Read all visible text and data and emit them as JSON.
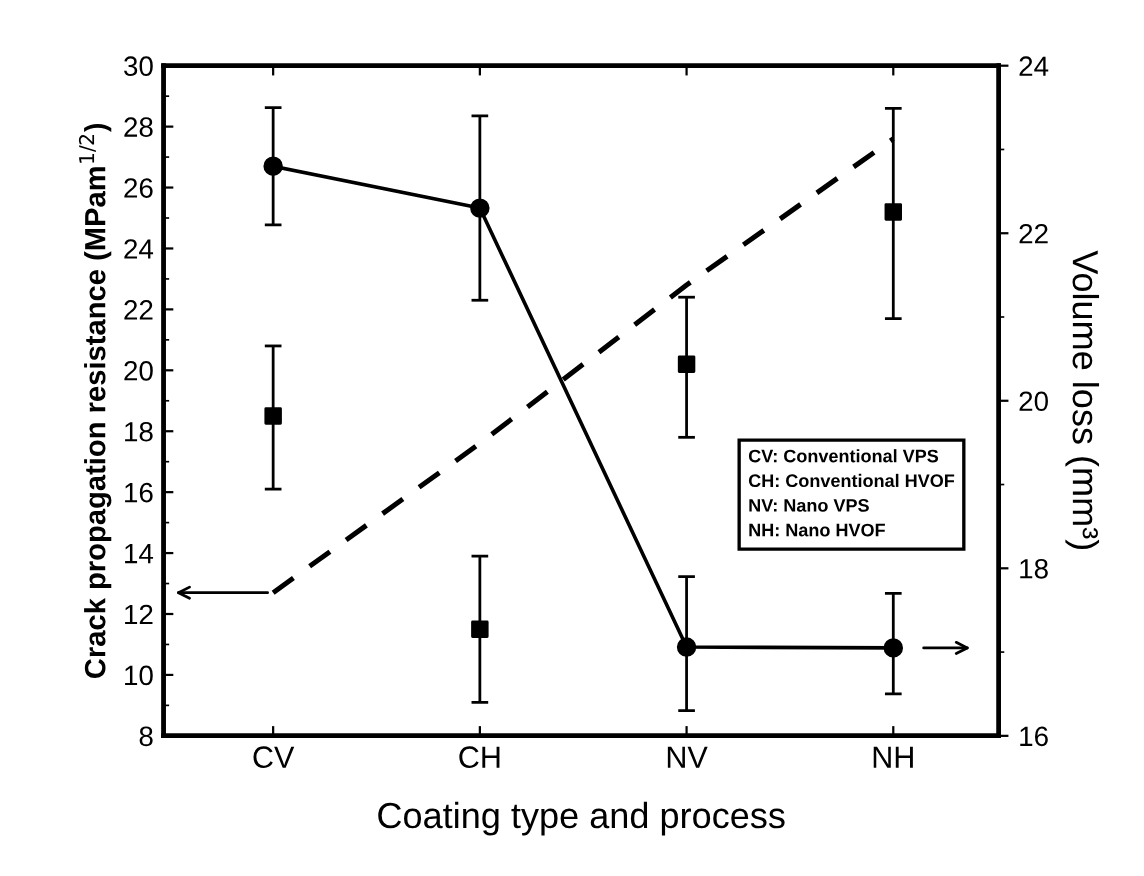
{
  "chart_data": {
    "type": "line",
    "xlabel": "Coating type and process",
    "ylabel": "Crack propagation resistance (MPam$^{1/2}$)",
    "y2label": "Volume loss (mm³)",
    "categories": [
      "CV",
      "CH",
      "NV",
      "NH"
    ],
    "ylim": [
      8,
      30
    ],
    "yticks": [
      8,
      10,
      12,
      14,
      16,
      18,
      20,
      22,
      24,
      26,
      28,
      30
    ],
    "y2lim": [
      16,
      24
    ],
    "y2ticks": [
      16,
      18,
      20,
      22,
      24
    ],
    "series": [
      {
        "axis": "y2",
        "color": "#000000",
        "marker": "circle",
        "line_style": "solid",
        "values": [
          22.8,
          22.3,
          17.06,
          17.05
        ],
        "errors": [
          [
            22.1,
            23.5
          ],
          [
            21.2,
            23.4
          ],
          [
            16.3,
            17.9
          ],
          [
            16.5,
            17.7
          ]
        ]
      },
      {
        "axis": "y",
        "color": "#000000",
        "marker": "none",
        "line_style": "dashed",
        "values": [
          12.7,
          17.6,
          22.8,
          27.6
        ]
      },
      {
        "type": "scatter",
        "axis": "y",
        "color": "#000000",
        "marker": "square",
        "values": [
          18.5,
          11.5,
          20.2,
          25.2
        ],
        "errors": [
          [
            16.1,
            20.8
          ],
          [
            9.1,
            13.9
          ],
          [
            17.8,
            22.4
          ],
          [
            21.7,
            28.6
          ]
        ]
      }
    ],
    "annotations": [
      "CV: Conventional VPS\nCH: Conventional HVOF\nNV: Nano VPS\nNH: Nano HVOF"
    ],
    "grid": false
  }
}
